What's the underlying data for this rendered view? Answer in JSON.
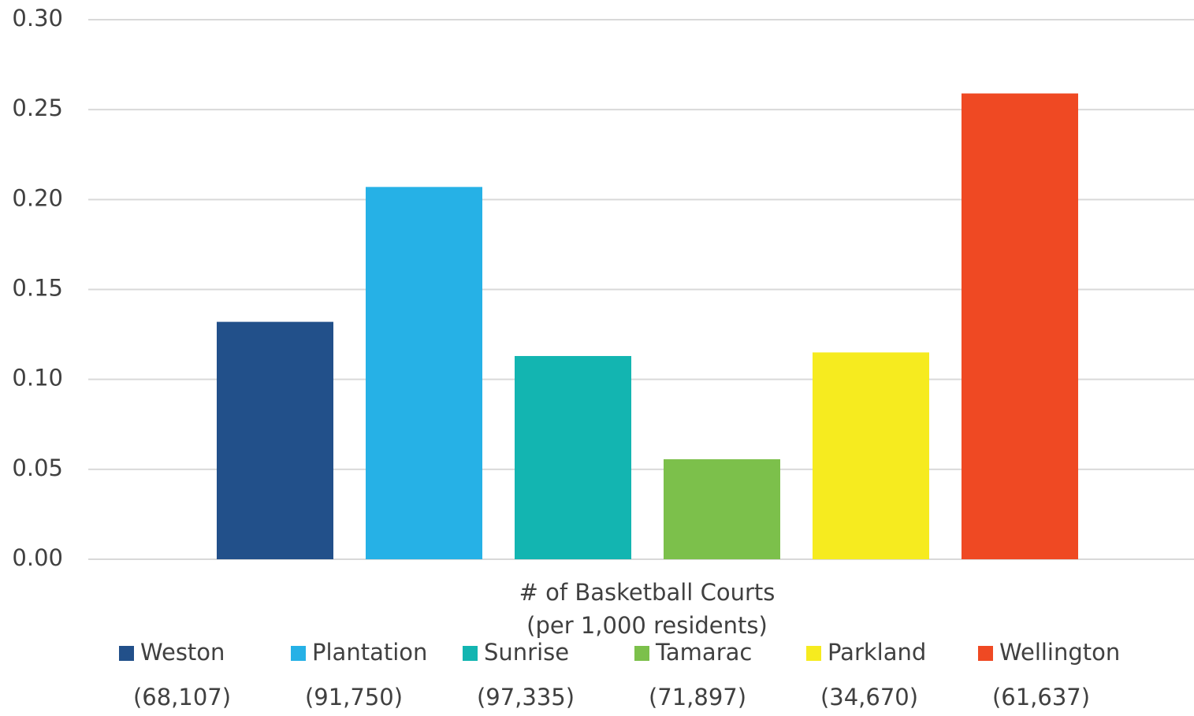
{
  "chart_data": {
    "type": "bar",
    "xlabel": [
      "# of Basketball Courts",
      "(per 1,000 residents)"
    ],
    "series": [
      {
        "name": "Weston",
        "population_label": "(68,107)",
        "color": "#22508a",
        "values": [
          0.132
        ]
      },
      {
        "name": "Plantation",
        "population_label": "(91,750)",
        "color": "#26b1e6",
        "values": [
          0.207
        ]
      },
      {
        "name": "Sunrise",
        "population_label": "(97,335)",
        "color": "#13b5b1",
        "values": [
          0.113
        ]
      },
      {
        "name": "Tamarac",
        "population_label": "(71,897)",
        "color": "#7cc04b",
        "values": [
          0.0556
        ]
      },
      {
        "name": "Parkland",
        "population_label": "(34,670)",
        "color": "#f6eb1f",
        "values": [
          0.115
        ]
      },
      {
        "name": "Wellington",
        "population_label": "(61,637)",
        "color": "#ef4923",
        "values": [
          0.259
        ]
      }
    ],
    "ylim": [
      0,
      0.3
    ],
    "yticks": [
      {
        "value": 0,
        "label": "0.00"
      },
      {
        "value": 0.05,
        "label": "0.05"
      },
      {
        "value": 0.1,
        "label": "0.10"
      },
      {
        "value": 0.15,
        "label": "0.15"
      },
      {
        "value": 0.2,
        "label": "0.20"
      },
      {
        "value": 0.25,
        "label": "0.25"
      },
      {
        "value": 0.3,
        "label": "0.30"
      }
    ],
    "grid": true
  }
}
